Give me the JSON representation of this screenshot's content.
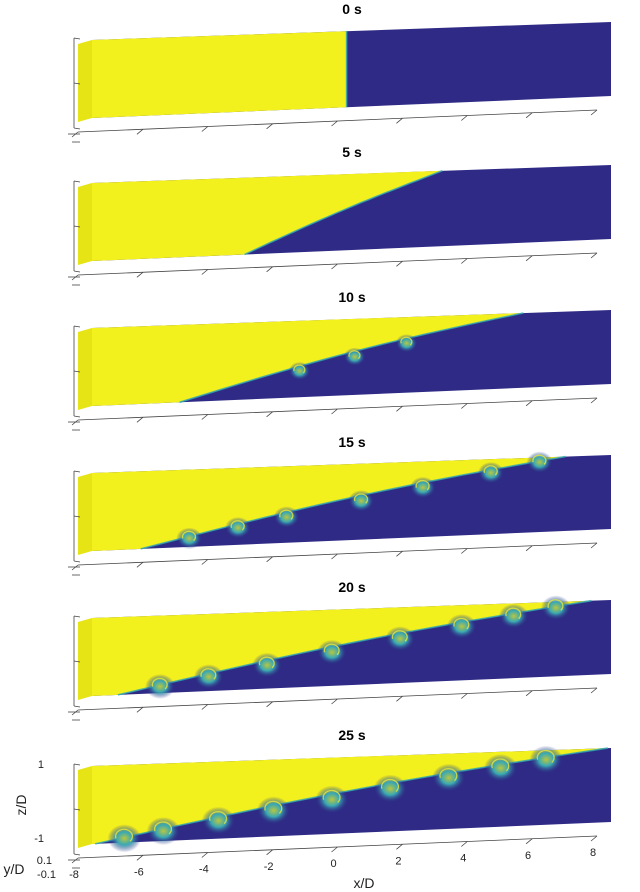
{
  "colors": {
    "heavy_fluid": "#f2f01d",
    "light_fluid": "#2e2a85",
    "mixed": "#2fa9b7",
    "front_face": "#e9ea2a",
    "axis": "#444444"
  },
  "panels": [
    {
      "time_label": "0 s",
      "front_top_x": -0.15,
      "front_bottom_x": -0.15,
      "vortices": []
    },
    {
      "time_label": "5 s",
      "front_top_x": 2.8,
      "front_bottom_x": -3.3,
      "vortices": []
    },
    {
      "time_label": "10 s",
      "front_top_x": 5.3,
      "front_bottom_x": -5.3,
      "vortices": [
        -1.6,
        0.1,
        1.7
      ]
    },
    {
      "time_label": "15 s",
      "front_top_x": 6.6,
      "front_bottom_x": -6.5,
      "vortices": [
        -5.0,
        -3.5,
        -2.0,
        0.3,
        2.2,
        4.3,
        5.8
      ]
    },
    {
      "time_label": "20 s",
      "front_top_x": 7.4,
      "front_bottom_x": -7.2,
      "vortices": [
        -5.9,
        -4.4,
        -2.6,
        -0.6,
        1.5,
        3.4,
        5.0,
        6.3
      ]
    },
    {
      "time_label": "25 s",
      "front_top_x": 7.9,
      "front_bottom_x": -7.9,
      "vortices": [
        -7.0,
        -5.8,
        -4.1,
        -2.4,
        -0.6,
        1.2,
        3.0,
        4.6,
        6.0
      ]
    }
  ],
  "axes": {
    "x_label": "x/D",
    "x_ticks": [
      "-8",
      "-6",
      "-4",
      "-2",
      "0",
      "2",
      "4",
      "6",
      "8"
    ],
    "z_label": "z/D",
    "z_ticks": [
      "1",
      "-1"
    ],
    "y_label": "y/D",
    "y_ticks": [
      "0.1",
      "-0.1"
    ]
  }
}
